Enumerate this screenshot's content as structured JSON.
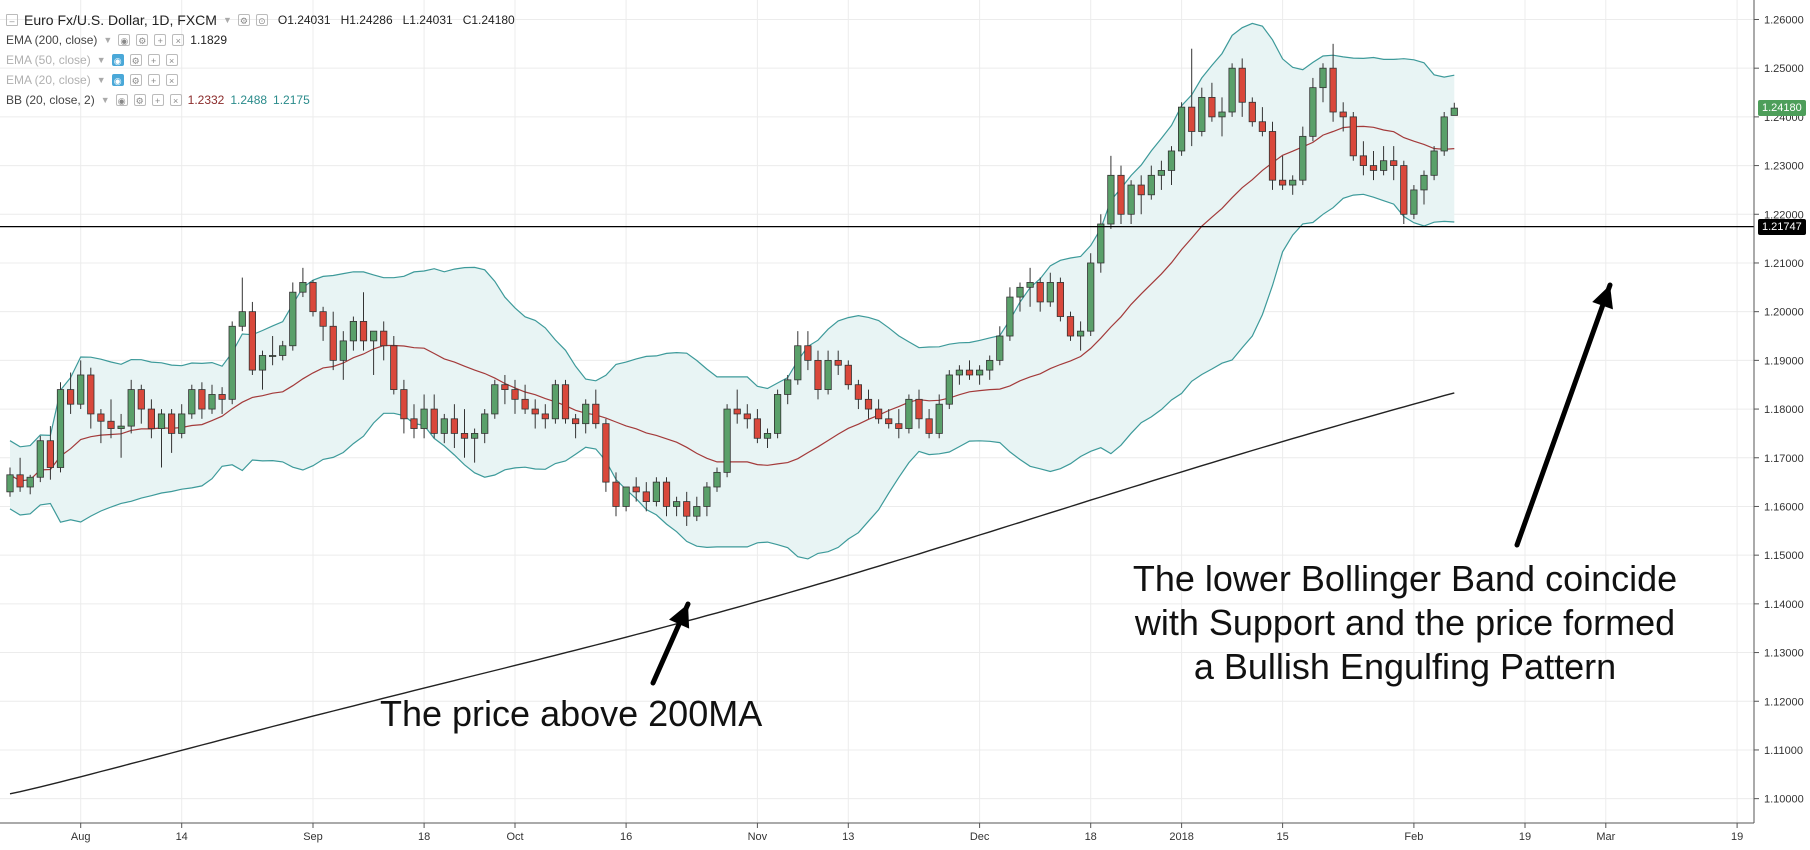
{
  "legend": {
    "symbol": "Euro Fx/U.S. Dollar, 1D, FXCM",
    "open": "O1.24031",
    "high": "H1.24286",
    "low": "L1.24031",
    "close": "C1.24180",
    "indicators": [
      {
        "label": "EMA (200, close)",
        "values": [
          "1.1829"
        ],
        "faded": false
      },
      {
        "label": "EMA (50, close)",
        "values": [],
        "faded": true
      },
      {
        "label": "EMA (20, close)",
        "values": [],
        "faded": true
      },
      {
        "label": "BB (20, close, 2)",
        "values": [
          "1.2332",
          "1.2488",
          "1.2175"
        ],
        "faded": false
      }
    ]
  },
  "annotations": {
    "left": "The price above 200MA",
    "right_line1": "The lower Bollinger Band coincide",
    "right_line2": "with Support and the price formed",
    "right_line3": "a Bullish Engulfing Pattern"
  },
  "price_tags": {
    "last": "1.24180",
    "support": "1.21747"
  },
  "colors": {
    "up": "#5aa06a",
    "down": "#d9483b",
    "bb_band": "#3d9a9a",
    "bb_fill": "#e8f4f4",
    "bb_mid": "#a33a3a",
    "ema200": "#222222",
    "grid": "#ececec",
    "last_tag": "#4d9e5a",
    "support_tag": "#000000"
  },
  "chart_data": {
    "type": "candlestick",
    "title": "Euro Fx/U.S. Dollar, 1D, FXCM",
    "ylim": [
      1.095,
      1.264
    ],
    "y_ticks": [
      "1.10000",
      "1.11000",
      "1.12000",
      "1.13000",
      "1.14000",
      "1.15000",
      "1.16000",
      "1.17000",
      "1.18000",
      "1.19000",
      "1.20000",
      "1.21000",
      "1.22000",
      "1.23000",
      "1.24000",
      "1.25000",
      "1.26000"
    ],
    "x_ticks": [
      {
        "label": "Aug",
        "idx": 7
      },
      {
        "label": "14",
        "idx": 17
      },
      {
        "label": "Sep",
        "idx": 30
      },
      {
        "label": "18",
        "idx": 41
      },
      {
        "label": "Oct",
        "idx": 50
      },
      {
        "label": "16",
        "idx": 61
      },
      {
        "label": "Nov",
        "idx": 74
      },
      {
        "label": "13",
        "idx": 83
      },
      {
        "label": "Dec",
        "idx": 96
      },
      {
        "label": "18",
        "idx": 107
      },
      {
        "label": "2018",
        "idx": 116
      },
      {
        "label": "15",
        "idx": 126
      },
      {
        "label": "Feb",
        "idx": 139
      },
      {
        "label": "19",
        "idx": 150
      },
      {
        "label": "Mar",
        "idx": 158
      },
      {
        "label": "19",
        "idx": 171
      }
    ],
    "support_level": 1.21747,
    "last_price": 1.2418,
    "ohlc": [
      [
        1.163,
        1.168,
        1.162,
        1.1665
      ],
      [
        1.1665,
        1.17,
        1.163,
        1.164
      ],
      [
        1.164,
        1.1665,
        1.1625,
        1.166
      ],
      [
        1.166,
        1.1745,
        1.165,
        1.1735
      ],
      [
        1.1735,
        1.1765,
        1.1655,
        1.168
      ],
      [
        1.168,
        1.1855,
        1.167,
        1.184
      ],
      [
        1.184,
        1.1875,
        1.179,
        1.181
      ],
      [
        1.181,
        1.19,
        1.18,
        1.187
      ],
      [
        1.187,
        1.1885,
        1.176,
        1.179
      ],
      [
        1.179,
        1.18,
        1.173,
        1.1775
      ],
      [
        1.1775,
        1.182,
        1.174,
        1.176
      ],
      [
        1.176,
        1.179,
        1.17,
        1.1765
      ],
      [
        1.1765,
        1.186,
        1.175,
        1.184
      ],
      [
        1.184,
        1.185,
        1.177,
        1.18
      ],
      [
        1.18,
        1.182,
        1.174,
        1.176
      ],
      [
        1.176,
        1.18,
        1.168,
        1.179
      ],
      [
        1.179,
        1.18,
        1.171,
        1.175
      ],
      [
        1.175,
        1.181,
        1.174,
        1.179
      ],
      [
        1.179,
        1.185,
        1.178,
        1.184
      ],
      [
        1.184,
        1.1855,
        1.178,
        1.18
      ],
      [
        1.18,
        1.185,
        1.179,
        1.183
      ],
      [
        1.183,
        1.1845,
        1.179,
        1.182
      ],
      [
        1.182,
        1.198,
        1.181,
        1.197
      ],
      [
        1.197,
        1.207,
        1.196,
        1.2
      ],
      [
        1.2,
        1.202,
        1.187,
        1.188
      ],
      [
        1.188,
        1.192,
        1.184,
        1.191
      ],
      [
        1.191,
        1.195,
        1.189,
        1.191
      ],
      [
        1.191,
        1.194,
        1.19,
        1.193
      ],
      [
        1.193,
        1.206,
        1.192,
        1.204
      ],
      [
        1.204,
        1.209,
        1.203,
        1.206
      ],
      [
        1.206,
        1.2065,
        1.199,
        1.2
      ],
      [
        1.2,
        1.201,
        1.194,
        1.197
      ],
      [
        1.197,
        1.2,
        1.188,
        1.19
      ],
      [
        1.19,
        1.196,
        1.186,
        1.194
      ],
      [
        1.194,
        1.199,
        1.192,
        1.198
      ],
      [
        1.198,
        1.204,
        1.192,
        1.194
      ],
      [
        1.194,
        1.196,
        1.187,
        1.196
      ],
      [
        1.196,
        1.198,
        1.19,
        1.193
      ],
      [
        1.193,
        1.195,
        1.183,
        1.184
      ],
      [
        1.184,
        1.186,
        1.175,
        1.178
      ],
      [
        1.178,
        1.181,
        1.174,
        1.176
      ],
      [
        1.176,
        1.183,
        1.174,
        1.18
      ],
      [
        1.18,
        1.183,
        1.174,
        1.175
      ],
      [
        1.175,
        1.179,
        1.173,
        1.178
      ],
      [
        1.178,
        1.181,
        1.172,
        1.175
      ],
      [
        1.175,
        1.18,
        1.17,
        1.174
      ],
      [
        1.174,
        1.176,
        1.169,
        1.175
      ],
      [
        1.175,
        1.18,
        1.173,
        1.179
      ],
      [
        1.179,
        1.186,
        1.178,
        1.185
      ],
      [
        1.185,
        1.187,
        1.181,
        1.184
      ],
      [
        1.184,
        1.186,
        1.179,
        1.182
      ],
      [
        1.182,
        1.185,
        1.179,
        1.18
      ],
      [
        1.18,
        1.182,
        1.176,
        1.179
      ],
      [
        1.179,
        1.181,
        1.176,
        1.178
      ],
      [
        1.178,
        1.186,
        1.177,
        1.185
      ],
      [
        1.185,
        1.186,
        1.177,
        1.178
      ],
      [
        1.178,
        1.179,
        1.174,
        1.177
      ],
      [
        1.177,
        1.182,
        1.175,
        1.181
      ],
      [
        1.181,
        1.184,
        1.176,
        1.177
      ],
      [
        1.177,
        1.178,
        1.163,
        1.165
      ],
      [
        1.165,
        1.167,
        1.158,
        1.16
      ],
      [
        1.16,
        1.164,
        1.159,
        1.164
      ],
      [
        1.164,
        1.166,
        1.161,
        1.163
      ],
      [
        1.163,
        1.165,
        1.159,
        1.161
      ],
      [
        1.161,
        1.166,
        1.16,
        1.165
      ],
      [
        1.165,
        1.166,
        1.158,
        1.16
      ],
      [
        1.16,
        1.162,
        1.158,
        1.161
      ],
      [
        1.161,
        1.163,
        1.156,
        1.158
      ],
      [
        1.158,
        1.162,
        1.157,
        1.16
      ],
      [
        1.16,
        1.165,
        1.158,
        1.164
      ],
      [
        1.164,
        1.168,
        1.163,
        1.167
      ],
      [
        1.167,
        1.181,
        1.166,
        1.18
      ],
      [
        1.18,
        1.184,
        1.177,
        1.179
      ],
      [
        1.179,
        1.181,
        1.176,
        1.178
      ],
      [
        1.178,
        1.18,
        1.173,
        1.174
      ],
      [
        1.174,
        1.176,
        1.172,
        1.175
      ],
      [
        1.175,
        1.184,
        1.174,
        1.183
      ],
      [
        1.183,
        1.187,
        1.181,
        1.186
      ],
      [
        1.186,
        1.196,
        1.185,
        1.193
      ],
      [
        1.193,
        1.196,
        1.188,
        1.19
      ],
      [
        1.19,
        1.192,
        1.182,
        1.184
      ],
      [
        1.184,
        1.192,
        1.183,
        1.19
      ],
      [
        1.19,
        1.192,
        1.187,
        1.189
      ],
      [
        1.189,
        1.19,
        1.184,
        1.185
      ],
      [
        1.185,
        1.186,
        1.18,
        1.182
      ],
      [
        1.182,
        1.184,
        1.178,
        1.18
      ],
      [
        1.18,
        1.182,
        1.177,
        1.178
      ],
      [
        1.178,
        1.18,
        1.176,
        1.177
      ],
      [
        1.177,
        1.18,
        1.174,
        1.176
      ],
      [
        1.176,
        1.183,
        1.175,
        1.182
      ],
      [
        1.182,
        1.184,
        1.176,
        1.178
      ],
      [
        1.178,
        1.18,
        1.174,
        1.175
      ],
      [
        1.175,
        1.183,
        1.174,
        1.181
      ],
      [
        1.181,
        1.188,
        1.18,
        1.187
      ],
      [
        1.187,
        1.189,
        1.185,
        1.188
      ],
      [
        1.188,
        1.19,
        1.186,
        1.187
      ],
      [
        1.187,
        1.189,
        1.185,
        1.188
      ],
      [
        1.188,
        1.191,
        1.186,
        1.19
      ],
      [
        1.19,
        1.197,
        1.189,
        1.195
      ],
      [
        1.195,
        1.205,
        1.194,
        1.203
      ],
      [
        1.203,
        1.206,
        1.2,
        1.205
      ],
      [
        1.205,
        1.209,
        1.201,
        1.206
      ],
      [
        1.206,
        1.207,
        1.2,
        1.202
      ],
      [
        1.202,
        1.208,
        1.201,
        1.206
      ],
      [
        1.206,
        1.207,
        1.198,
        1.199
      ],
      [
        1.199,
        1.2,
        1.194,
        1.195
      ],
      [
        1.195,
        1.198,
        1.192,
        1.196
      ],
      [
        1.196,
        1.212,
        1.195,
        1.21
      ],
      [
        1.21,
        1.22,
        1.208,
        1.218
      ],
      [
        1.218,
        1.232,
        1.217,
        1.228
      ],
      [
        1.228,
        1.23,
        1.218,
        1.22
      ],
      [
        1.22,
        1.227,
        1.218,
        1.226
      ],
      [
        1.226,
        1.228,
        1.22,
        1.224
      ],
      [
        1.224,
        1.23,
        1.223,
        1.228
      ],
      [
        1.228,
        1.231,
        1.225,
        1.229
      ],
      [
        1.229,
        1.234,
        1.226,
        1.233
      ],
      [
        1.233,
        1.243,
        1.232,
        1.242
      ],
      [
        1.242,
        1.254,
        1.234,
        1.237
      ],
      [
        1.237,
        1.246,
        1.236,
        1.244
      ],
      [
        1.244,
        1.247,
        1.239,
        1.24
      ],
      [
        1.24,
        1.244,
        1.236,
        1.241
      ],
      [
        1.241,
        1.251,
        1.24,
        1.25
      ],
      [
        1.25,
        1.252,
        1.24,
        1.243
      ],
      [
        1.243,
        1.244,
        1.238,
        1.239
      ],
      [
        1.239,
        1.242,
        1.236,
        1.237
      ],
      [
        1.237,
        1.239,
        1.225,
        1.227
      ],
      [
        1.227,
        1.232,
        1.225,
        1.226
      ],
      [
        1.226,
        1.228,
        1.224,
        1.227
      ],
      [
        1.227,
        1.238,
        1.226,
        1.236
      ],
      [
        1.236,
        1.248,
        1.235,
        1.246
      ],
      [
        1.246,
        1.251,
        1.243,
        1.25
      ],
      [
        1.25,
        1.255,
        1.239,
        1.241
      ],
      [
        1.241,
        1.243,
        1.237,
        1.24
      ],
      [
        1.24,
        1.241,
        1.231,
        1.232
      ],
      [
        1.232,
        1.235,
        1.228,
        1.23
      ],
      [
        1.23,
        1.233,
        1.227,
        1.229
      ],
      [
        1.229,
        1.234,
        1.228,
        1.231
      ],
      [
        1.231,
        1.234,
        1.227,
        1.23
      ],
      [
        1.23,
        1.231,
        1.218,
        1.22
      ],
      [
        1.22,
        1.226,
        1.219,
        1.225
      ],
      [
        1.225,
        1.229,
        1.222,
        1.228
      ],
      [
        1.228,
        1.234,
        1.227,
        1.233
      ],
      [
        1.233,
        1.241,
        1.232,
        1.24
      ],
      [
        1.2403,
        1.2429,
        1.2403,
        1.2418
      ]
    ]
  }
}
